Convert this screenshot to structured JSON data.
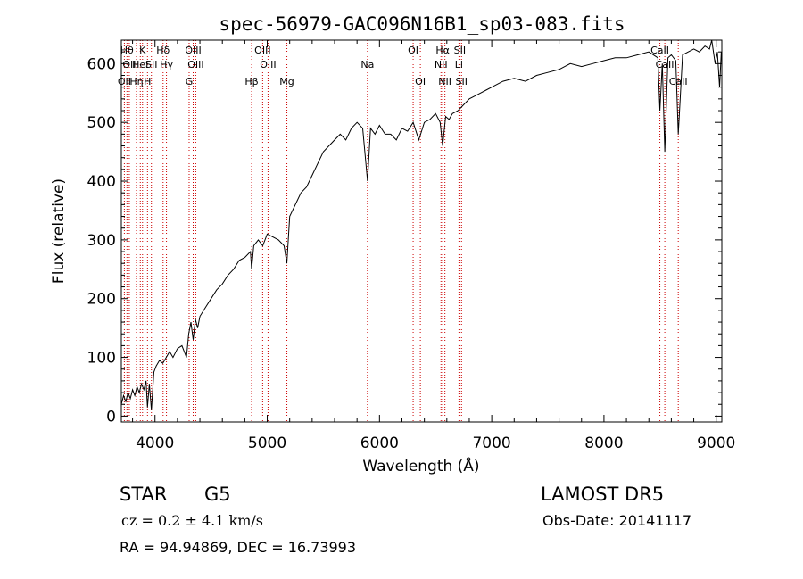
{
  "chart_data": {
    "type": "line",
    "title": "spec-56979-GAC096N16B1_sp03-083.fits",
    "xlabel": "Wavelength (Å)",
    "ylabel": "Flux (relative)",
    "xlim": [
      3700,
      9050
    ],
    "ylim": [
      -10,
      640
    ],
    "xticks": [
      4000,
      5000,
      6000,
      7000,
      8000,
      9000
    ],
    "yticks": [
      0,
      100,
      200,
      300,
      400,
      500,
      600
    ],
    "grid": false,
    "line_color": "#000000",
    "marker_line_color": "#cc0000",
    "series": [
      {
        "x": [
          3700,
          3720,
          3740,
          3760,
          3780,
          3800,
          3820,
          3840,
          3860,
          3880,
          3900,
          3920,
          3933,
          3950,
          3968,
          3990,
          4010,
          4040,
          4070,
          4100,
          4130,
          4160,
          4200,
          4240,
          4280,
          4300,
          4320,
          4340,
          4360,
          4380,
          4400,
          4450,
          4500,
          4550,
          4600,
          4650,
          4700,
          4750,
          4800,
          4850,
          4861,
          4880,
          4920,
          4960,
          5000,
          5050,
          5100,
          5150,
          5175,
          5200,
          5250,
          5300,
          5350,
          5400,
          5450,
          5500,
          5550,
          5600,
          5650,
          5700,
          5750,
          5800,
          5850,
          5893,
          5920,
          5960,
          6000,
          6050,
          6100,
          6150,
          6200,
          6250,
          6300,
          6350,
          6400,
          6450,
          6500,
          6540,
          6563,
          6590,
          6620,
          6650,
          6700,
          6750,
          6800,
          6850,
          6900,
          6950,
          7000,
          7100,
          7200,
          7300,
          7400,
          7500,
          7600,
          7700,
          7800,
          7900,
          8000,
          8100,
          8200,
          8300,
          8400,
          8480,
          8498,
          8520,
          8542,
          8570,
          8600,
          8640,
          8662,
          8700,
          8750,
          8800,
          8850,
          8900,
          8940,
          8960,
          8990,
          9010,
          9030,
          9045
        ],
        "y": [
          20,
          35,
          25,
          40,
          30,
          45,
          35,
          50,
          40,
          55,
          45,
          60,
          15,
          55,
          10,
          75,
          85,
          95,
          90,
          100,
          110,
          100,
          115,
          120,
          100,
          140,
          160,
          130,
          165,
          150,
          170,
          185,
          200,
          215,
          225,
          240,
          250,
          265,
          270,
          280,
          250,
          290,
          300,
          290,
          310,
          305,
          300,
          290,
          260,
          340,
          360,
          380,
          390,
          410,
          430,
          450,
          460,
          470,
          480,
          470,
          490,
          500,
          490,
          400,
          490,
          480,
          495,
          480,
          480,
          470,
          490,
          485,
          500,
          470,
          500,
          505,
          515,
          500,
          460,
          510,
          505,
          515,
          520,
          530,
          540,
          545,
          550,
          555,
          560,
          570,
          575,
          570,
          580,
          585,
          590,
          600,
          595,
          600,
          605,
          610,
          610,
          615,
          620,
          610,
          520,
          600,
          450,
          610,
          615,
          605,
          480,
          615,
          620,
          625,
          620,
          630,
          625,
          640,
          600,
          620,
          560,
          620
        ]
      }
    ],
    "lines": [
      {
        "wave": 3727,
        "label": "OII",
        "row": 3
      },
      {
        "wave": 3750,
        "label": "Hθ",
        "row": 1
      },
      {
        "wave": 3771,
        "label": "OII",
        "row": 2
      },
      {
        "wave": 3835,
        "label": "Hη",
        "row": 3
      },
      {
        "wave": 3869,
        "label": "HeI",
        "row": 2
      },
      {
        "wave": 3889,
        "label": "K",
        "row": 1
      },
      {
        "wave": 3933,
        "label": "H",
        "row": 3
      },
      {
        "wave": 3968,
        "label": "SII",
        "row": 2
      },
      {
        "wave": 4072,
        "label": "Hδ",
        "row": 1
      },
      {
        "wave": 4102,
        "label": "Hγ",
        "row": 2
      },
      {
        "wave": 4304,
        "label": "G",
        "row": 3
      },
      {
        "wave": 4340,
        "label": "OIII",
        "row": 1
      },
      {
        "wave": 4363,
        "label": "OIII",
        "row": 2
      },
      {
        "wave": 4861,
        "label": "Hβ",
        "row": 3
      },
      {
        "wave": 4959,
        "label": "OIII",
        "row": 1
      },
      {
        "wave": 5007,
        "label": "OIII",
        "row": 2
      },
      {
        "wave": 5175,
        "label": "Mg",
        "row": 3
      },
      {
        "wave": 5893,
        "label": "Na",
        "row": 2
      },
      {
        "wave": 6300,
        "label": "OI",
        "row": 1
      },
      {
        "wave": 6364,
        "label": "OI",
        "row": 3
      },
      {
        "wave": 6548,
        "label": "NII",
        "row": 2
      },
      {
        "wave": 6563,
        "label": "Hα",
        "row": 1
      },
      {
        "wave": 6583,
        "label": "NII",
        "row": 3
      },
      {
        "wave": 6708,
        "label": "Li",
        "row": 2
      },
      {
        "wave": 6716,
        "label": "SII",
        "row": 1
      },
      {
        "wave": 6731,
        "label": "SII",
        "row": 3
      },
      {
        "wave": 8498,
        "label": "CaII",
        "row": 1
      },
      {
        "wave": 8542,
        "label": "CaII",
        "row": 2
      },
      {
        "wave": 8662,
        "label": "CaII",
        "row": 3
      }
    ]
  },
  "info": {
    "class": "STAR",
    "subclass": "G5",
    "survey": "LAMOST DR5",
    "redshift": "cz = 0.2 ± 4.1 km/s",
    "obs_date": "Obs-Date: 20141117",
    "coords": "RA =  94.94869, DEC =  16.73993"
  }
}
